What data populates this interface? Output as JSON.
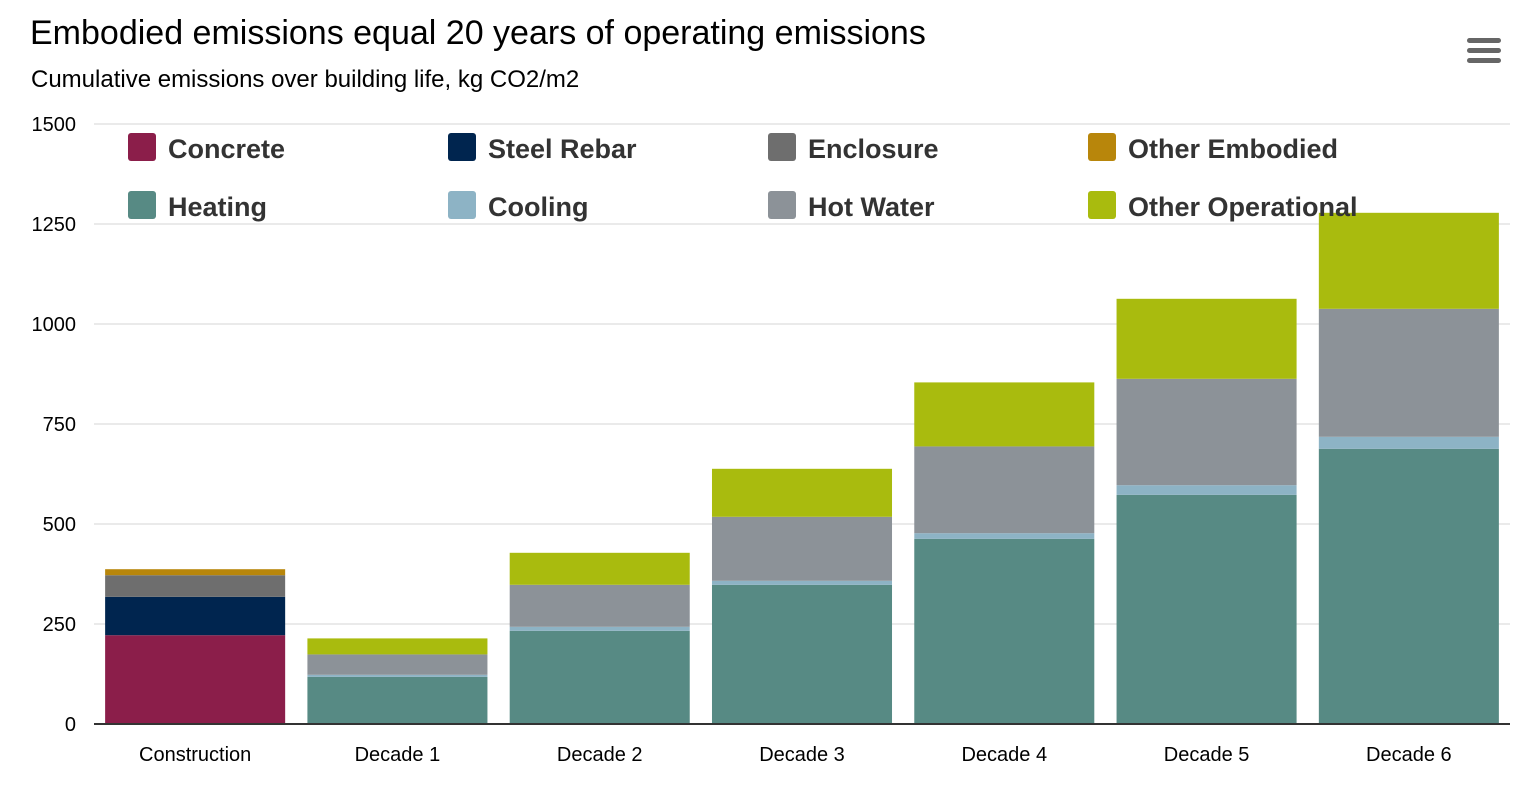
{
  "title": "Embodied emissions equal 20 years of operating emissions",
  "subtitle": "Cumulative emissions over building life, kg CO2/m2",
  "menu_icon": "hamburger-menu-icon",
  "chart_data": {
    "type": "bar",
    "stacked": true,
    "title": "Embodied emissions equal 20 years of operating emissions",
    "subtitle": "Cumulative emissions over building life, kg CO2/m2",
    "xlabel": "",
    "ylabel": "",
    "ylim": [
      0,
      1500
    ],
    "yticks": [
      0,
      250,
      500,
      750,
      1000,
      1250,
      1500
    ],
    "grid": true,
    "legend_position": "top",
    "categories": [
      "Construction",
      "Decade 1",
      "Decade 2",
      "Decade 3",
      "Decade 4",
      "Decade 5",
      "Decade 6"
    ],
    "series": [
      {
        "name": "Concrete",
        "color": "#8b1e4a",
        "values": [
          222,
          0,
          0,
          0,
          0,
          0,
          0
        ]
      },
      {
        "name": "Steel Rebar",
        "color": "#00254f",
        "values": [
          96,
          0,
          0,
          0,
          0,
          0,
          0
        ]
      },
      {
        "name": "Enclosure",
        "color": "#6e6e6e",
        "values": [
          54,
          0,
          0,
          0,
          0,
          0,
          0
        ]
      },
      {
        "name": "Other Embodied",
        "color": "#b8860b",
        "values": [
          15,
          0,
          0,
          0,
          0,
          0,
          0
        ]
      },
      {
        "name": "Heating",
        "color": "#578a84",
        "values": [
          0,
          118,
          233,
          348,
          463,
          573,
          688
        ]
      },
      {
        "name": "Cooling",
        "color": "#8db3c5",
        "values": [
          0,
          5,
          10,
          10,
          14,
          24,
          30
        ]
      },
      {
        "name": "Hot Water",
        "color": "#8c9298",
        "values": [
          0,
          51,
          105,
          160,
          217,
          266,
          320
        ]
      },
      {
        "name": "Other Operational",
        "color": "#a9bb0e",
        "values": [
          0,
          40,
          80,
          120,
          160,
          200,
          240
        ]
      }
    ]
  }
}
